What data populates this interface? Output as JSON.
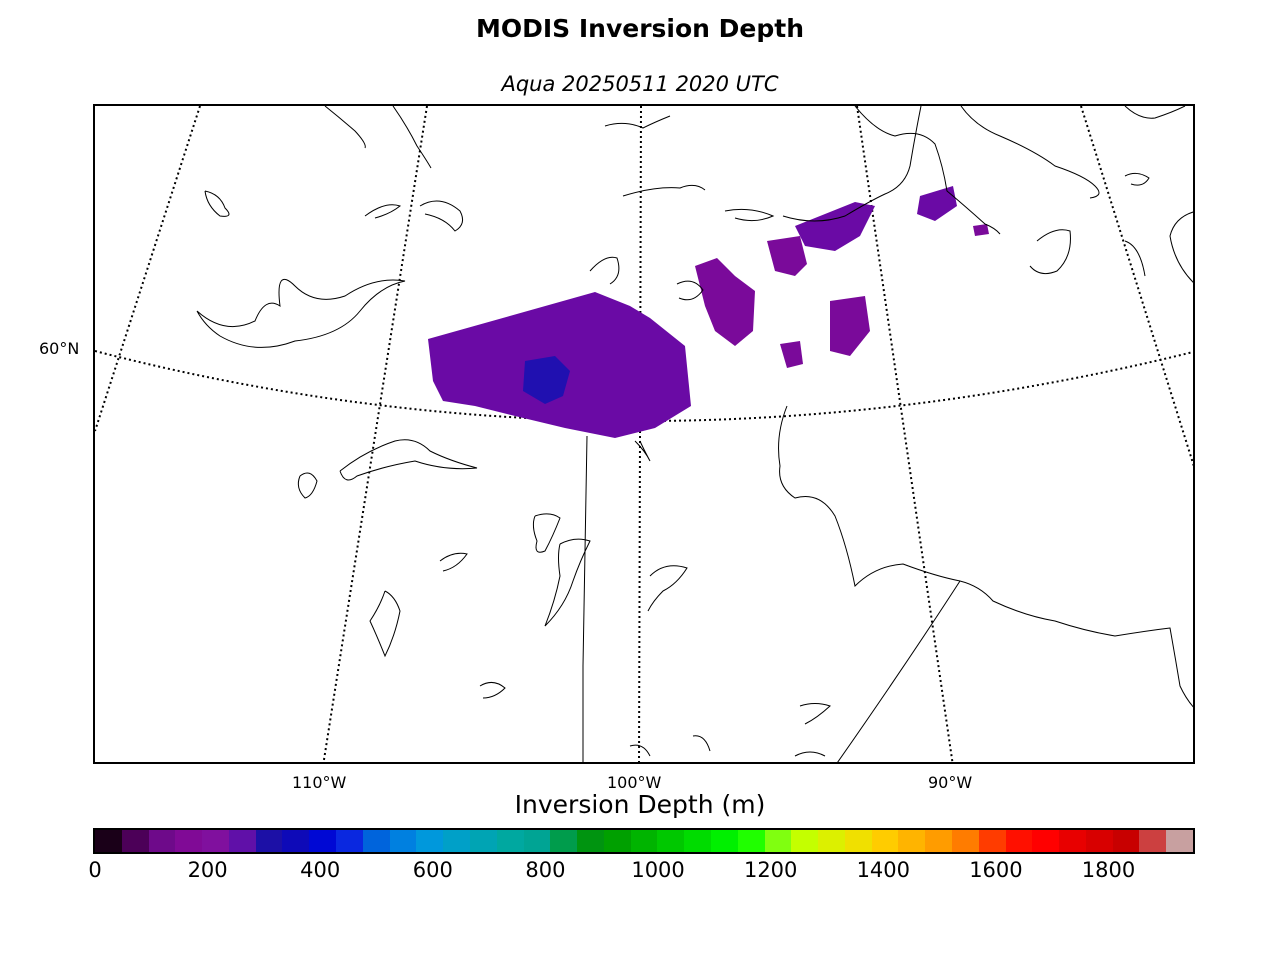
{
  "figure": {
    "title": "MODIS Inversion Depth",
    "subtitle": "Aqua 20250511 2020 UTC"
  },
  "map": {
    "region": "Central Canada / Hudson Bay",
    "parallel_labels": [
      "60°N"
    ],
    "meridian_labels": [
      "110°W",
      "100°W",
      "90°W"
    ],
    "coastline_color": "#000000",
    "data_color_dominant": "#6a0aa5",
    "data_color_dense": "#2010b0"
  },
  "colorbar": {
    "label": "Inversion Depth (m)",
    "min": 0,
    "max": 1950,
    "step": 50,
    "tick_labels": [
      "0",
      "200",
      "400",
      "600",
      "800",
      "1000",
      "1200",
      "1400",
      "1600",
      "1800"
    ],
    "colors": [
      "#1a0018",
      "#4c0058",
      "#6e0a8a",
      "#800a96",
      "#80109e",
      "#6010a8",
      "#1c10a6",
      "#0e0ab8",
      "#0008d4",
      "#0a28e0",
      "#0064dc",
      "#0080e0",
      "#0098dc",
      "#00a0c8",
      "#00a4b4",
      "#00a8a0",
      "#00a494",
      "#009c4c",
      "#009410",
      "#00a000",
      "#00b400",
      "#00c800",
      "#00dc00",
      "#00f000",
      "#20ff00",
      "#80ff10",
      "#c4ff00",
      "#dcf000",
      "#f0e000",
      "#ffcc00",
      "#ffb400",
      "#ff9c00",
      "#ff7c00",
      "#ff3c00",
      "#ff1000",
      "#ff0000",
      "#e80000",
      "#d80000",
      "#c80000",
      "#cc4040",
      "#c8a0a0"
    ]
  }
}
